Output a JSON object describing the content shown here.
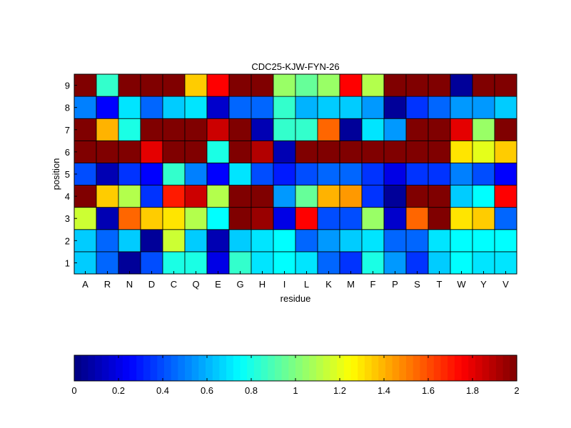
{
  "chart_data": {
    "type": "heatmap",
    "title": "CDC25-KJW-FYN-26",
    "xlabel": "residue",
    "ylabel": "position",
    "x_categories": [
      "A",
      "R",
      "N",
      "D",
      "C",
      "Q",
      "E",
      "G",
      "H",
      "I",
      "L",
      "K",
      "M",
      "F",
      "P",
      "S",
      "T",
      "W",
      "Y",
      "V"
    ],
    "y_categories": [
      "1",
      "2",
      "3",
      "4",
      "5",
      "6",
      "7",
      "8",
      "9"
    ],
    "colormap": "jet",
    "clim": [
      0,
      2
    ],
    "colorbar": {
      "location": "bottom",
      "ticks": [
        0,
        0.2,
        0.4,
        0.6,
        0.8,
        1,
        1.2,
        1.4,
        1.6,
        1.8,
        2
      ],
      "tick_labels": [
        "0",
        "0.2",
        "0.4",
        "0.6",
        "0.8",
        "1",
        "1.2",
        "1.4",
        "1.6",
        "1.8",
        "2"
      ]
    },
    "values": [
      [
        0.65,
        0.45,
        0.05,
        0.4,
        0.8,
        0.8,
        0.2,
        0.85,
        0.7,
        0.75,
        0.7,
        0.45,
        0.35,
        0.8,
        0.55,
        0.35,
        0.65,
        0.75,
        0.7,
        0.7
      ],
      [
        0.65,
        0.45,
        0.65,
        0.05,
        1.15,
        0.65,
        0.1,
        0.65,
        0.7,
        0.75,
        0.45,
        0.55,
        0.65,
        0.7,
        0.45,
        0.45,
        0.7,
        0.75,
        0.75,
        0.75
      ],
      [
        1.15,
        0.1,
        1.55,
        1.35,
        1.3,
        1.1,
        0.75,
        2.0,
        1.95,
        0.2,
        1.75,
        0.4,
        0.4,
        1.05,
        0.15,
        1.55,
        2.0,
        1.3,
        1.35,
        0.45
      ],
      [
        2.0,
        1.35,
        1.1,
        0.35,
        1.7,
        1.85,
        1.1,
        2.0,
        2.0,
        0.55,
        0.95,
        1.4,
        1.45,
        0.35,
        0.05,
        2.0,
        2.0,
        0.65,
        0.75,
        1.75
      ],
      [
        0.4,
        0.1,
        0.35,
        0.25,
        0.85,
        0.5,
        0.25,
        0.7,
        0.4,
        0.3,
        0.4,
        0.45,
        0.45,
        0.35,
        0.2,
        0.35,
        0.35,
        0.5,
        0.4,
        0.25
      ],
      [
        2.0,
        2.0,
        2.0,
        1.8,
        2.0,
        2.0,
        0.8,
        2.0,
        1.9,
        0.1,
        2.0,
        2.0,
        2.0,
        2.0,
        2.0,
        2.0,
        2.0,
        1.3,
        1.2,
        1.35
      ],
      [
        2.0,
        1.4,
        0.8,
        2.0,
        2.0,
        2.0,
        1.85,
        2.0,
        0.1,
        0.85,
        0.85,
        1.55,
        0.05,
        0.7,
        0.55,
        2.0,
        2.0,
        1.8,
        1.05,
        2.0
      ],
      [
        0.5,
        0.25,
        0.7,
        0.45,
        0.65,
        0.7,
        0.15,
        0.45,
        0.45,
        0.85,
        0.6,
        0.65,
        0.65,
        0.55,
        0.05,
        0.35,
        0.45,
        0.55,
        0.55,
        0.65
      ],
      [
        2.0,
        0.85,
        2.0,
        2.0,
        2.0,
        1.35,
        1.75,
        2.0,
        2.0,
        1.05,
        0.95,
        1.05,
        1.75,
        1.1,
        2.0,
        2.0,
        2.0,
        0.05,
        2.0,
        2.0
      ]
    ]
  }
}
